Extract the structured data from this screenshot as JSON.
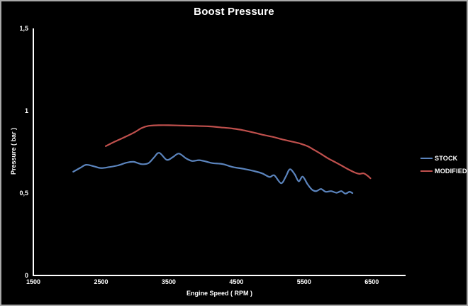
{
  "title": "Boost Pressure",
  "axes": {
    "x": {
      "label": "Engine Speed ( RPM )"
    },
    "y": {
      "label": "Pressure ( bar )"
    }
  },
  "legend": [
    {
      "label": "STOCK",
      "color": "#5b84bd"
    },
    {
      "label": "MODIFIED",
      "color": "#c0504d"
    }
  ],
  "chart_data": {
    "type": "line",
    "title": "Boost Pressure",
    "xlabel": "Engine Speed ( RPM )",
    "ylabel": "Pressure ( bar )",
    "xlim": [
      1500,
      7000
    ],
    "ylim": [
      0,
      1.5
    ],
    "grid": false,
    "background": "#000000",
    "text_color": "#ffffff",
    "axis_color": "#ffffff",
    "legend_position": "right",
    "x_ticks": [
      {
        "label": "1500",
        "value": 1500
      },
      {
        "label": "2500",
        "value": 2500
      },
      {
        "label": "3500",
        "value": 3500
      },
      {
        "label": "4500",
        "value": 4500
      },
      {
        "label": "5500",
        "value": 5500
      },
      {
        "label": "6500",
        "value": 6500
      }
    ],
    "y_ticks": [
      {
        "label": "0",
        "value": 0
      },
      {
        "label": "0,5",
        "value": 0.5
      },
      {
        "label": "1",
        "value": 1
      },
      {
        "label": "1,5",
        "value": 1.5
      }
    ],
    "series": [
      {
        "name": "STOCK",
        "color": "#5b84bd",
        "smooth": true,
        "x": [
          2090,
          2200,
          2280,
          2400,
          2500,
          2620,
          2750,
          2880,
          2980,
          3100,
          3200,
          3280,
          3360,
          3470,
          3560,
          3650,
          3760,
          3850,
          3950,
          4050,
          4150,
          4300,
          4450,
          4600,
          4750,
          4880,
          4990,
          5060,
          5160,
          5230,
          5290,
          5360,
          5420,
          5480,
          5550,
          5620,
          5680,
          5750,
          5820,
          5900,
          5980,
          6050,
          6110,
          6170,
          6215
        ],
        "y": [
          0.63,
          0.655,
          0.672,
          0.662,
          0.652,
          0.658,
          0.668,
          0.685,
          0.69,
          0.676,
          0.682,
          0.715,
          0.745,
          0.702,
          0.718,
          0.74,
          0.71,
          0.695,
          0.7,
          0.692,
          0.682,
          0.676,
          0.658,
          0.648,
          0.635,
          0.62,
          0.598,
          0.608,
          0.56,
          0.6,
          0.645,
          0.615,
          0.572,
          0.6,
          0.555,
          0.52,
          0.512,
          0.525,
          0.508,
          0.512,
          0.502,
          0.512,
          0.497,
          0.508,
          0.5
        ]
      },
      {
        "name": "MODIFIED",
        "color": "#c0504d",
        "smooth": true,
        "x": [
          2570,
          2700,
          2850,
          2990,
          3100,
          3200,
          3350,
          3500,
          3700,
          3900,
          4100,
          4300,
          4450,
          4600,
          4750,
          4900,
          5050,
          5200,
          5350,
          5450,
          5550,
          5650,
          5750,
          5850,
          5950,
          6050,
          6150,
          6250,
          6320,
          6380,
          6440,
          6480
        ],
        "y": [
          0.785,
          0.812,
          0.84,
          0.868,
          0.895,
          0.908,
          0.912,
          0.912,
          0.91,
          0.908,
          0.905,
          0.898,
          0.892,
          0.882,
          0.868,
          0.853,
          0.84,
          0.824,
          0.81,
          0.8,
          0.785,
          0.762,
          0.738,
          0.712,
          0.69,
          0.668,
          0.645,
          0.625,
          0.617,
          0.62,
          0.605,
          0.59
        ]
      }
    ]
  }
}
